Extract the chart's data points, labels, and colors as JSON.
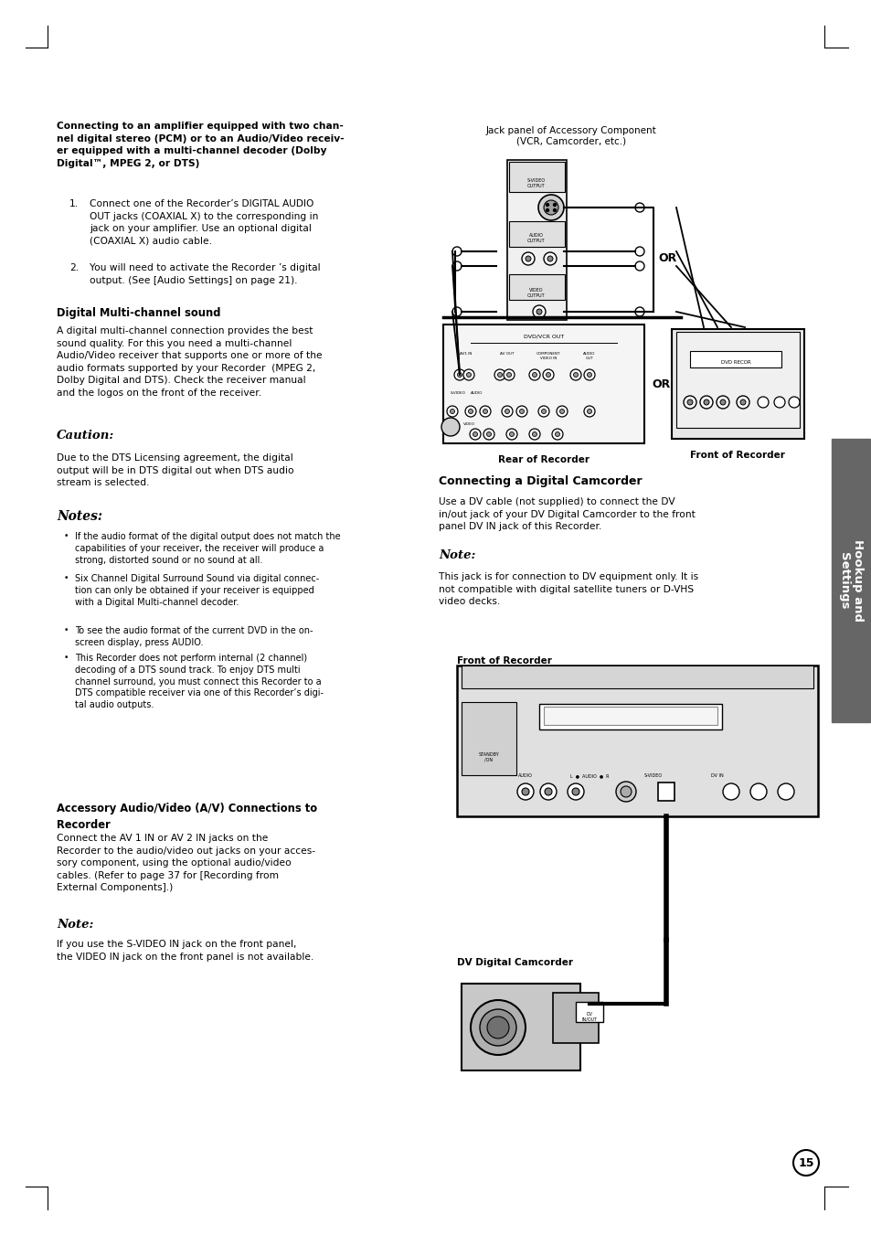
{
  "page_bg": "#ffffff",
  "page_number": "15",
  "sidebar_color": "#666666",
  "sidebar_text": "Hookup and\nSettings",
  "sidebar_text_color": "#ffffff",
  "heading1": "Connecting to an amplifier equipped with two chan-\nnel digital stereo (PCM) or to an Audio/Video receiv-\ner equipped with a multi-channel decoder (Dolby\nDigital™, MPEG 2, or DTS)",
  "list_item1_num": "1.",
  "list_item1": "Connect one of the Recorder’s DIGITAL AUDIO\nOUT jacks (COAXIAL X) to the corresponding in\njack on your amplifier. Use an optional digital\n(COAXIAL X) audio cable.",
  "list_item2_num": "2.",
  "list_item2": "You will need to activate the Recorder ’s digital\noutput. (See [Audio Settings] on page 21).",
  "heading2": "Digital Multi-channel sound",
  "para1": "A digital multi-channel connection provides the best\nsound quality. For this you need a multi-channel\nAudio/Video receiver that supports one or more of the\naudio formats supported by your Recorder  (MPEG 2,\nDolby Digital and DTS). Check the receiver manual\nand the logos on the front of the receiver.",
  "caution_head": "Caution:",
  "caution_body": "Due to the DTS Licensing agreement, the digital\noutput will be in DTS digital out when DTS audio\nstream is selected.",
  "notes_head": "Notes:",
  "note1": "If the audio format of the digital output does not match the\ncapabilities of your receiver, the receiver will produce a\nstrong, distorted sound or no sound at all.",
  "note2": "Six Channel Digital Surround Sound via digital connec-\ntion can only be obtained if your receiver is equipped\nwith a Digital Multi-channel decoder.",
  "note3": "To see the audio format of the current DVD in the on-\nscreen display, press AUDIO.",
  "note4": "This Recorder does not perform internal (2 channel)\ndecoding of a DTS sound track. To enjoy DTS multi\nchannel surround, you must connect this Recorder to a\nDTS compatible receiver via one of this Recorder’s digi-\ntal audio outputs.",
  "heading3": "Accessory Audio/Video (A/V) Connections to\nRecorder",
  "para2": "Connect the AV 1 IN or AV 2 IN jacks on the\nRecorder to the audio/video out jacks on your acces-\nsory component, using the optional audio/video\ncables. (Refer to page 37 for [Recording from\nExternal Components].)",
  "noteA_head": "Note:",
  "noteA_body": "If you use the S-VIDEO IN jack on the front panel,\nthe VIDEO IN jack on the front panel is not available.",
  "right_label1": "Jack panel of Accessory Component\n(VCR, Camcorder, etc.)",
  "rear_label": "Rear of Recorder",
  "front_label": "Front of Recorder",
  "cam_section_head": "Connecting a Digital Camcorder",
  "cam_para": "Use a DV cable (not supplied) to connect the DV\nin/out jack of your DV Digital Camcorder to the front\npanel DV IN jack of this Recorder.",
  "noteB_head": "Note:",
  "noteB_body": "This jack is for connection to DV equipment only. It is\nnot compatible with digital satellite tuners or D-VHS\nvideo decks.",
  "front_rec_label": "Front of Recorder",
  "dv_cam_label": "DV Digital Camcorder"
}
